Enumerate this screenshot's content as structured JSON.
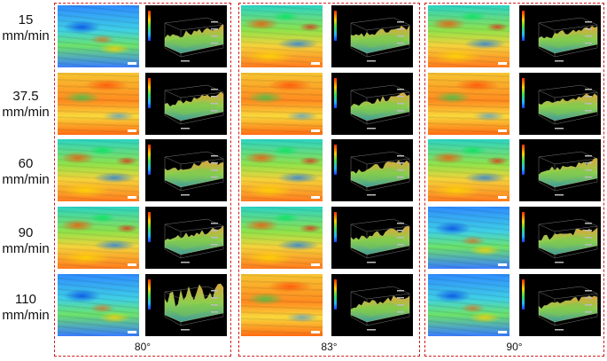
{
  "speeds": [
    {
      "value": "15",
      "unit": "mm/min"
    },
    {
      "value": "37.5",
      "unit": "mm/min"
    },
    {
      "value": "60",
      "unit": "mm/min"
    },
    {
      "value": "90",
      "unit": "mm/min"
    },
    {
      "value": "110",
      "unit": "mm/min"
    }
  ],
  "angles": [
    "80°",
    "83°",
    "90°"
  ],
  "colors": {
    "frame": "#d21e1e",
    "plot_background": "#000000"
  }
}
